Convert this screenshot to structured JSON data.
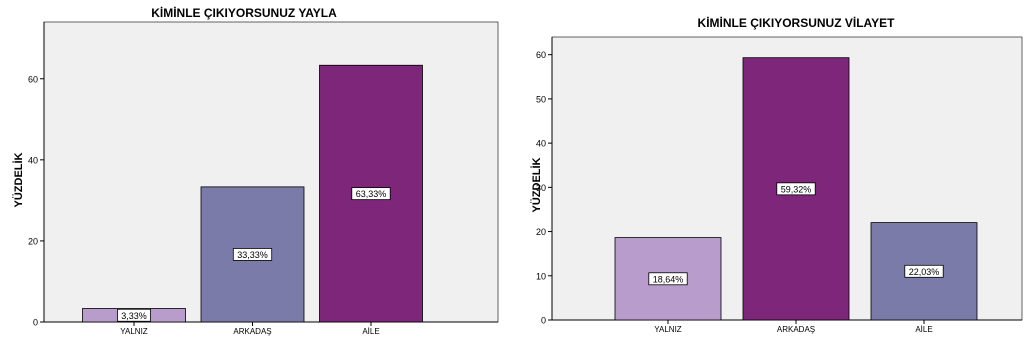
{
  "chart_data": [
    {
      "type": "bar",
      "title": "KİMİNLE ÇIKIYORSUNUZ YAYLA",
      "xlabel": "",
      "ylabel": "YÜZDELİK",
      "categories": [
        "YALNIZ",
        "ARKADAŞ",
        "AİLE"
      ],
      "values": [
        3.33,
        33.33,
        63.33
      ],
      "data_labels": [
        "3,33%",
        "33,33%",
        "63,33%"
      ],
      "ylim": [
        0,
        74
      ],
      "yticks": [
        0,
        20,
        40,
        60
      ],
      "grid": false,
      "legend": "none",
      "colors": [
        "#b89ccc",
        "#7b7ba9",
        "#7d267a"
      ]
    },
    {
      "type": "bar",
      "title": "KİMİNLE ÇIKIYORSUNUZ VİLAYET",
      "xlabel": "",
      "ylabel": "YÜZDELİK",
      "categories": [
        "YALNIZ",
        "ARKADAŞ",
        "AİLE"
      ],
      "values": [
        18.64,
        59.32,
        22.03
      ],
      "data_labels": [
        "18,64%",
        "59,32%",
        "22,03%"
      ],
      "ylim": [
        0,
        64
      ],
      "yticks": [
        0,
        10,
        20,
        30,
        40,
        50,
        60
      ],
      "grid": false,
      "legend": "none",
      "colors": [
        "#b89ccc",
        "#7d267a",
        "#7b7ba9"
      ]
    }
  ]
}
